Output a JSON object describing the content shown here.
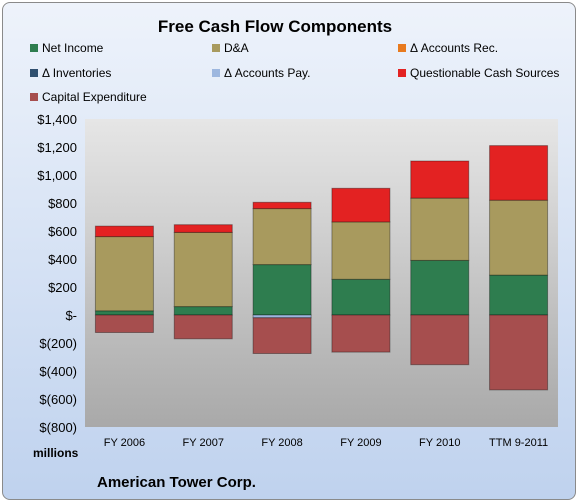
{
  "chart_data": {
    "type": "bar",
    "stacked": true,
    "title": "Free Cash Flow Components",
    "company": "American Tower Corp.",
    "units_label": "millions",
    "categories": [
      "FY 2006",
      "FY 2007",
      "FY 2008",
      "FY 2009",
      "FY 2010",
      "TTM 9-2011"
    ],
    "ylim": [
      -800,
      1400
    ],
    "y_ticks": [
      "$1,400",
      "$1,200",
      "$1,000",
      "$800",
      "$600",
      "$400",
      "$200",
      "$-",
      "$(200)",
      "$(400)",
      "$(600)",
      "$(800)"
    ],
    "legend_placement": "top",
    "grid": false,
    "series": [
      {
        "name": "Net Income",
        "color": "#2e7d4f",
        "values": [
          30,
          60,
          360,
          255,
          390,
          285
        ]
      },
      {
        "name": "D&A",
        "color": "#a89a5e",
        "values": [
          530,
          530,
          400,
          410,
          445,
          535
        ]
      },
      {
        "name": "Δ Accounts Rec.",
        "color": "#e87a1e",
        "values": [
          0,
          0,
          0,
          0,
          0,
          0
        ]
      },
      {
        "name": "Δ Inventories",
        "color": "#2f4f6f",
        "values": [
          0,
          0,
          0,
          0,
          0,
          0
        ]
      },
      {
        "name": "Δ Accounts Pay.",
        "color": "#9db7df",
        "values": [
          0,
          0,
          -20,
          0,
          0,
          0
        ]
      },
      {
        "name": "Questionable Cash Sources",
        "color": "#e32222",
        "values": [
          75,
          55,
          45,
          240,
          265,
          390
        ]
      },
      {
        "name": "Capital Expenditure",
        "color": "#a64e4e",
        "values": [
          -125,
          -170,
          -255,
          -265,
          -355,
          -535
        ]
      }
    ]
  }
}
